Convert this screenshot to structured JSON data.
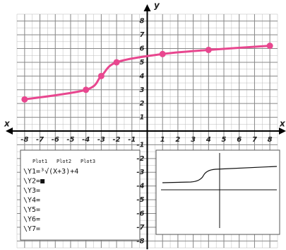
{
  "chart_data": {
    "type": "line",
    "x": [
      -8,
      -4,
      -3,
      -2,
      1,
      4,
      8
    ],
    "series": [
      {
        "color": "#e8478f",
        "values": [
          2.3,
          3,
          4,
          5,
          5.6,
          5.9,
          6.2
        ]
      }
    ],
    "xlim": [
      -8.5,
      8.5
    ],
    "ylim": [
      -8.5,
      8.5
    ],
    "xticks": [
      -8,
      -7,
      -6,
      -5,
      -4,
      -3,
      -2,
      -1,
      1,
      2,
      3,
      4,
      5,
      6,
      7,
      8
    ],
    "yticks": [
      8,
      7,
      6,
      5,
      4,
      3,
      2,
      1,
      -1,
      -2,
      -3,
      -4,
      -5,
      -6,
      -7,
      -8
    ],
    "xlabel": "x",
    "ylabel": "y",
    "grid": true
  },
  "calculator": {
    "plots": [
      "Plot1",
      "Plot2",
      "Plot3"
    ],
    "equations": [
      "\\Y1=³√(X+3)+4",
      "\\Y2=■",
      "\\Y3=",
      "\\Y4=",
      "\\Y5=",
      "\\Y6=",
      "\\Y7="
    ]
  }
}
